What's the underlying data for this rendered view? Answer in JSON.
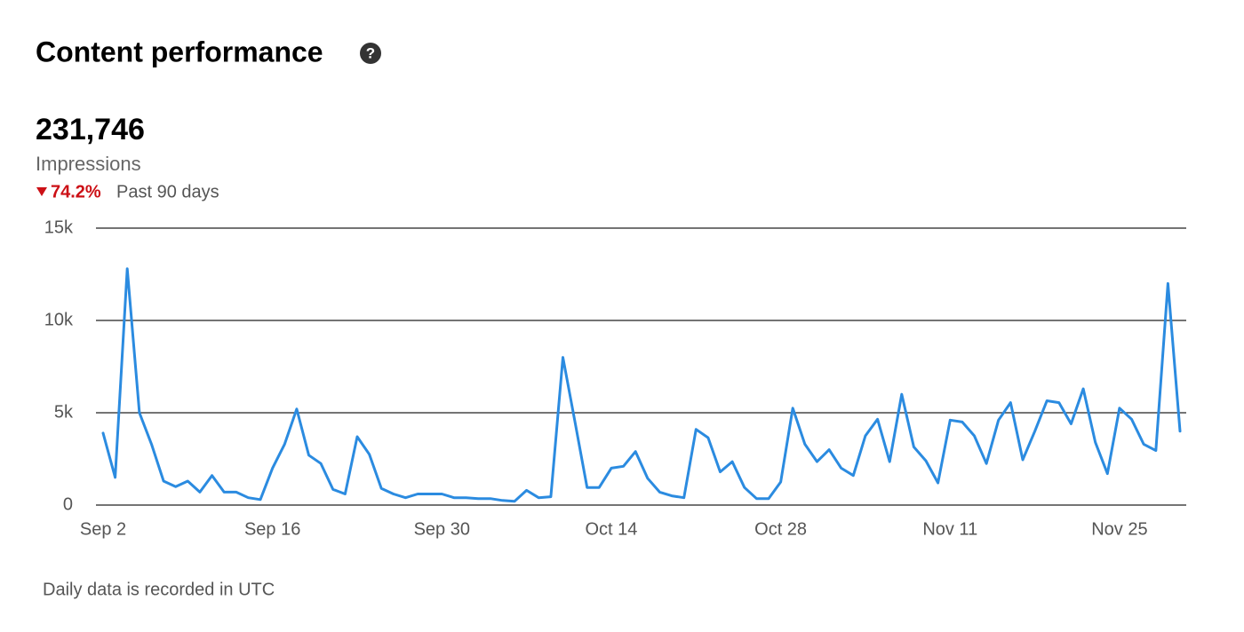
{
  "chart_data": {
    "type": "line",
    "title": "Content performance",
    "summary": {
      "value": "231,746",
      "label": "Impressions",
      "change": "74.2%",
      "period": "Past 90 days"
    },
    "note": "Daily data is recorded in UTC",
    "categories": [
      "Sep 2",
      null,
      null,
      null,
      null,
      null,
      null,
      null,
      null,
      null,
      null,
      null,
      null,
      null,
      "Sep 16",
      null,
      null,
      null,
      null,
      null,
      null,
      null,
      null,
      null,
      null,
      null,
      null,
      null,
      "Sep 30",
      null,
      null,
      null,
      null,
      null,
      null,
      null,
      null,
      null,
      null,
      null,
      null,
      null,
      "Oct 14",
      null,
      null,
      null,
      null,
      null,
      null,
      null,
      null,
      null,
      null,
      null,
      null,
      null,
      "Oct 28",
      null,
      null,
      null,
      null,
      null,
      null,
      null,
      null,
      null,
      null,
      null,
      null,
      null,
      "Nov 11",
      null,
      null,
      null,
      null,
      null,
      null,
      null,
      null,
      null,
      null,
      null,
      null,
      null,
      "Nov 25",
      null,
      null,
      null,
      null,
      null
    ],
    "series": [
      {
        "name": "Impressions",
        "color": "#2b8be0",
        "values": [
          3900,
          1500,
          12800,
          5000,
          3300,
          1300,
          1000,
          1300,
          700,
          1600,
          700,
          700,
          400,
          300,
          2000,
          3300,
          5200,
          2700,
          2250,
          850,
          600,
          3700,
          2750,
          900,
          600,
          400,
          600,
          600,
          600,
          400,
          400,
          350,
          350,
          250,
          200,
          800,
          400,
          450,
          8000,
          4500,
          950,
          950,
          2000,
          2100,
          2900,
          1450,
          700,
          500,
          400,
          4100,
          3650,
          1800,
          2350,
          950,
          350,
          350,
          1250,
          5250,
          3300,
          2350,
          3000,
          2000,
          1600,
          3750,
          4650,
          2350,
          6000,
          3150,
          2400,
          1200,
          4600,
          4500,
          3750,
          2250,
          4600,
          5550,
          2450,
          4000,
          5650,
          5550,
          4400,
          6300,
          3400,
          1700,
          5250,
          4650,
          3300,
          2950,
          12000,
          4000
        ]
      }
    ],
    "ylim": [
      0,
      15000
    ],
    "yticks": [
      0,
      {
        "value": 5000,
        "label": "5k"
      },
      {
        "value": 10000,
        "label": "10k"
      },
      {
        "value": 15000,
        "label": "15k"
      }
    ],
    "grid": true
  }
}
